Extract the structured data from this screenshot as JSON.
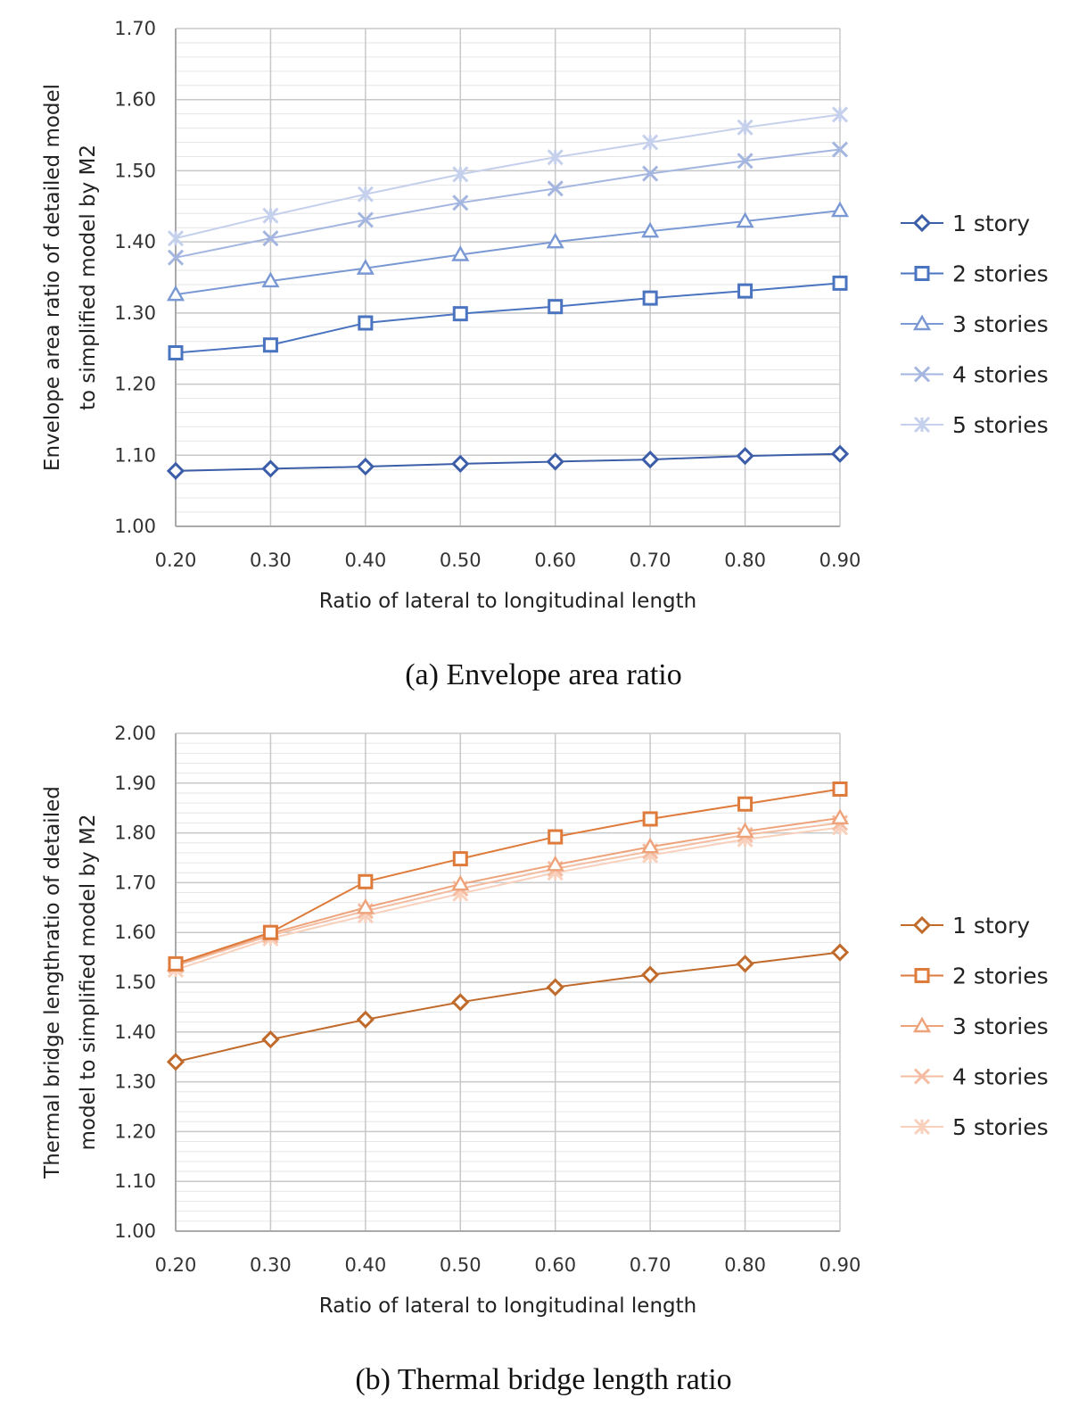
{
  "charts": [
    {
      "caption": "(a) Envelope area ratio",
      "chart_data": {
        "type": "line",
        "x": [
          0.2,
          0.3,
          0.4,
          0.5,
          0.6,
          0.7,
          0.8,
          0.9
        ],
        "x_tick_labels": [
          "0.20",
          "0.30",
          "0.40",
          "0.50",
          "0.60",
          "0.70",
          "0.80",
          "0.90"
        ],
        "y_tick_labels": [
          "1.00",
          "1.10",
          "1.20",
          "1.30",
          "1.40",
          "1.50",
          "1.60",
          "1.70"
        ],
        "ylim": [
          1.0,
          1.7
        ],
        "xlabel": "Ratio of lateral to longitudinal length",
        "ylabel_lines": [
          "Envelope area ratio of detailed model",
          "to simplified model by M2"
        ],
        "grid": true,
        "legend_position": "right",
        "series": [
          {
            "name": "1 story",
            "marker": "diamond",
            "color": "#3c5da8",
            "values": [
              1.078,
              1.081,
              1.084,
              1.088,
              1.091,
              1.094,
              1.099,
              1.102
            ]
          },
          {
            "name": "2 stories",
            "marker": "square",
            "color": "#4a73c0",
            "values": [
              1.244,
              1.255,
              1.286,
              1.299,
              1.309,
              1.321,
              1.331,
              1.342
            ]
          },
          {
            "name": "3 stories",
            "marker": "triangle",
            "color": "#7a98d4",
            "values": [
              1.326,
              1.345,
              1.363,
              1.382,
              1.4,
              1.415,
              1.429,
              1.444
            ]
          },
          {
            "name": "4 stories",
            "marker": "x",
            "color": "#a4b6e0",
            "values": [
              1.378,
              1.405,
              1.431,
              1.455,
              1.475,
              1.496,
              1.514,
              1.53
            ]
          },
          {
            "name": "5 stories",
            "marker": "star",
            "color": "#c5d0ec",
            "values": [
              1.405,
              1.437,
              1.467,
              1.495,
              1.519,
              1.54,
              1.561,
              1.579
            ]
          }
        ]
      }
    },
    {
      "caption": "(b) Thermal bridge length ratio",
      "chart_data": {
        "type": "line",
        "x": [
          0.2,
          0.3,
          0.4,
          0.5,
          0.6,
          0.7,
          0.8,
          0.9
        ],
        "x_tick_labels": [
          "0.20",
          "0.30",
          "0.40",
          "0.50",
          "0.60",
          "0.70",
          "0.80",
          "0.90"
        ],
        "y_tick_labels": [
          "1.00",
          "1.10",
          "1.20",
          "1.30",
          "1.40",
          "1.50",
          "1.60",
          "1.70",
          "1.80",
          "1.90",
          "2.00"
        ],
        "ylim": [
          1.0,
          2.0
        ],
        "xlabel": "Ratio of lateral to longitudinal length",
        "ylabel_lines": [
          "Thermal bridge lengthratio of detailed",
          "model  to simplified model by M2"
        ],
        "grid": true,
        "legend_position": "right",
        "series": [
          {
            "name": "1 story",
            "marker": "diamond",
            "color": "#c06a2c",
            "values": [
              1.34,
              1.385,
              1.425,
              1.46,
              1.49,
              1.515,
              1.537,
              1.56
            ]
          },
          {
            "name": "2 stories",
            "marker": "square",
            "color": "#de7a3a",
            "values": [
              1.537,
              1.6,
              1.702,
              1.748,
              1.792,
              1.828,
              1.858,
              1.888
            ]
          },
          {
            "name": "3 stories",
            "marker": "triangle",
            "color": "#eea27a",
            "values": [
              1.535,
              1.598,
              1.65,
              1.697,
              1.736,
              1.772,
              1.803,
              1.83
            ]
          },
          {
            "name": "4 stories",
            "marker": "x",
            "color": "#f4bca0",
            "values": [
              1.533,
              1.594,
              1.643,
              1.688,
              1.728,
              1.763,
              1.796,
              1.82
            ]
          },
          {
            "name": "5 stories",
            "marker": "star",
            "color": "#f8d0bc",
            "values": [
              1.525,
              1.588,
              1.634,
              1.678,
              1.72,
              1.755,
              1.787,
              1.811
            ]
          }
        ]
      }
    }
  ]
}
